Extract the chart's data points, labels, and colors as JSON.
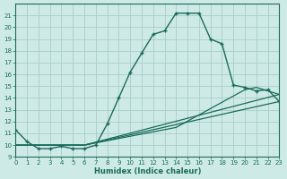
{
  "xlabel": "Humidex (Indice chaleur)",
  "bg_color": "#ceeae6",
  "grid_color": "#a8cdc9",
  "line_color": "#1a6b5a",
  "xlim": [
    0,
    23
  ],
  "ylim": [
    9,
    22
  ],
  "xticks": [
    0,
    1,
    2,
    3,
    4,
    5,
    6,
    7,
    8,
    9,
    10,
    11,
    12,
    13,
    14,
    15,
    16,
    17,
    18,
    19,
    20,
    21,
    22,
    23
  ],
  "yticks": [
    9,
    10,
    11,
    12,
    13,
    14,
    15,
    16,
    17,
    18,
    19,
    20,
    21
  ],
  "series1_x": [
    0,
    1,
    2,
    3,
    4,
    5,
    6,
    7,
    8,
    9,
    10,
    11,
    12,
    13,
    14,
    15,
    16,
    17,
    18,
    19,
    20,
    21,
    22,
    23
  ],
  "series1_y": [
    11.3,
    10.3,
    9.7,
    9.7,
    9.9,
    9.7,
    9.7,
    10.0,
    11.8,
    14.0,
    16.2,
    17.8,
    19.4,
    19.7,
    21.2,
    21.2,
    21.2,
    19.0,
    18.6,
    15.1,
    14.9,
    14.6,
    14.7,
    13.7
  ],
  "series2_x": [
    0,
    6,
    23
  ],
  "series2_y": [
    10.0,
    10.0,
    13.7
  ],
  "series3_x": [
    0,
    6,
    23
  ],
  "series3_y": [
    10.0,
    10.0,
    14.3
  ],
  "series4_x": [
    0,
    6,
    14,
    20,
    21,
    23
  ],
  "series4_y": [
    10.0,
    10.0,
    11.5,
    14.7,
    14.9,
    14.3
  ]
}
